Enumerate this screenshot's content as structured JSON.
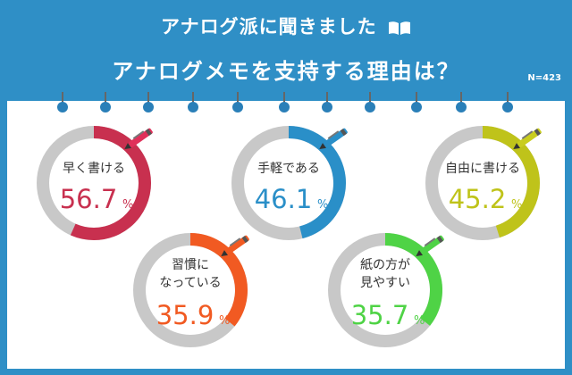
{
  "header": {
    "line1": "アナログ派に聞きました",
    "line2": "アナログメモを支持する理由は？",
    "n_label": "N=423",
    "book_icon": "open-book-icon"
  },
  "colors": {
    "background": "#2f8fc6",
    "track": "#c8c8c8"
  },
  "chart_data": {
    "type": "pie",
    "title": "アナログメモを支持する理由は？",
    "unit": "%",
    "items": [
      {
        "label_lines": [
          "早く書ける"
        ],
        "value": 56.7,
        "color": "#c8304f",
        "pen": "#e0305a"
      },
      {
        "label_lines": [
          "手軽である"
        ],
        "value": 46.1,
        "color": "#2a8fc8",
        "pen": "#2a8fc8"
      },
      {
        "label_lines": [
          "自由に書ける"
        ],
        "value": 45.2,
        "color": "#bfc31a",
        "pen": "#c9cd1e"
      },
      {
        "label_lines": [
          "習慣に",
          "なっている"
        ],
        "value": 35.9,
        "color": "#f15a22",
        "pen": "#f15a22"
      },
      {
        "label_lines": [
          "紙の方が",
          "見やすい"
        ],
        "value": 35.7,
        "color": "#4fd346",
        "pen": "#4fd346"
      }
    ]
  }
}
